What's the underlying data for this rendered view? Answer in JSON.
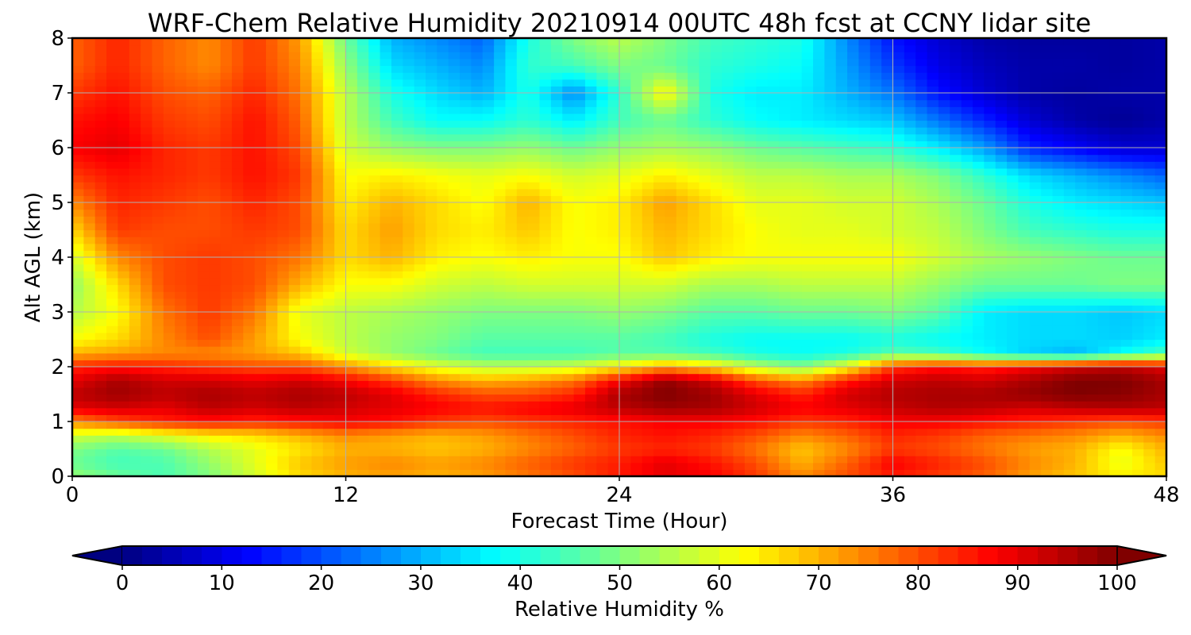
{
  "chart_data": {
    "type": "heatmap",
    "title": "WRF-Chem Relative Humidity 20210914 00UTC 48h fcst at CCNY lidar site",
    "xlabel": "Forecast Time (Hour)",
    "ylabel": "Alt AGL (km)",
    "xlim": [
      0,
      48
    ],
    "ylim": [
      0,
      8
    ],
    "x_ticks": [
      0,
      12,
      24,
      36,
      48
    ],
    "y_ticks": [
      0,
      1,
      2,
      3,
      4,
      5,
      6,
      7,
      8
    ],
    "grid": true,
    "colorbar": {
      "label": "Relative Humidity %",
      "range": [
        0,
        100
      ],
      "ticks": [
        0,
        10,
        20,
        30,
        40,
        50,
        60,
        70,
        80,
        90,
        100
      ],
      "extend": "both",
      "colormap": "jet"
    },
    "x": [
      0,
      2,
      4,
      6,
      8,
      10,
      12,
      14,
      16,
      18,
      20,
      22,
      24,
      26,
      28,
      30,
      32,
      34,
      36,
      38,
      40,
      42,
      44,
      46,
      48
    ],
    "y": [
      0,
      0.25,
      0.5,
      0.75,
      1,
      1.25,
      1.5,
      1.75,
      2,
      2.25,
      2.5,
      3,
      3.5,
      4,
      4.5,
      5,
      5.5,
      6,
      6.5,
      7,
      7.5,
      8
    ],
    "values": [
      [
        52,
        48,
        45,
        50,
        58,
        66,
        70,
        72,
        70,
        72,
        76,
        80,
        85,
        90,
        88,
        82,
        74,
        80,
        85,
        82,
        78,
        72,
        68,
        64,
        66
      ],
      [
        48,
        44,
        45,
        52,
        60,
        68,
        72,
        74,
        72,
        74,
        78,
        82,
        85,
        90,
        86,
        80,
        70,
        78,
        88,
        84,
        80,
        74,
        70,
        60,
        68
      ],
      [
        50,
        46,
        48,
        55,
        60,
        65,
        70,
        70,
        68,
        70,
        74,
        78,
        82,
        84,
        82,
        76,
        68,
        74,
        82,
        80,
        76,
        72,
        70,
        62,
        70
      ],
      [
        58,
        56,
        60,
        64,
        66,
        70,
        74,
        72,
        70,
        72,
        76,
        80,
        84,
        86,
        84,
        80,
        74,
        78,
        84,
        82,
        78,
        76,
        74,
        70,
        74
      ],
      [
        74,
        80,
        84,
        86,
        84,
        86,
        88,
        86,
        82,
        80,
        82,
        84,
        86,
        88,
        88,
        86,
        82,
        84,
        88,
        88,
        86,
        84,
        82,
        80,
        82
      ],
      [
        90,
        92,
        90,
        94,
        92,
        94,
        92,
        90,
        88,
        86,
        88,
        90,
        94,
        97,
        96,
        92,
        88,
        90,
        93,
        95,
        94,
        92,
        94,
        95,
        94
      ],
      [
        94,
        97,
        94,
        96,
        94,
        96,
        94,
        90,
        84,
        80,
        80,
        84,
        96,
        100,
        97,
        90,
        84,
        92,
        95,
        96,
        96,
        98,
        100,
        99,
        96
      ],
      [
        90,
        96,
        92,
        92,
        90,
        92,
        88,
        82,
        74,
        70,
        72,
        76,
        88,
        98,
        92,
        80,
        74,
        85,
        92,
        94,
        92,
        96,
        100,
        100,
        96
      ],
      [
        84,
        86,
        84,
        82,
        80,
        80,
        74,
        66,
        60,
        56,
        56,
        58,
        64,
        72,
        66,
        56,
        50,
        62,
        82,
        86,
        84,
        88,
        92,
        94,
        90
      ],
      [
        70,
        72,
        74,
        74,
        72,
        68,
        58,
        52,
        48,
        44,
        44,
        44,
        46,
        46,
        44,
        40,
        38,
        40,
        46,
        44,
        38,
        33,
        30,
        38,
        45
      ],
      [
        62,
        66,
        74,
        80,
        72,
        62,
        56,
        52,
        50,
        46,
        46,
        46,
        46,
        44,
        40,
        38,
        38,
        38,
        40,
        38,
        36,
        34,
        34,
        33,
        36
      ],
      [
        55,
        62,
        76,
        82,
        76,
        60,
        56,
        54,
        52,
        50,
        50,
        50,
        52,
        50,
        46,
        46,
        48,
        48,
        50,
        46,
        36,
        34,
        34,
        32,
        34
      ],
      [
        52,
        66,
        80,
        82,
        80,
        70,
        62,
        62,
        58,
        56,
        58,
        58,
        58,
        58,
        54,
        54,
        56,
        56,
        56,
        52,
        48,
        48,
        48,
        50,
        50
      ],
      [
        58,
        74,
        80,
        82,
        80,
        76,
        66,
        70,
        64,
        62,
        64,
        62,
        62,
        68,
        64,
        62,
        62,
        62,
        62,
        58,
        54,
        52,
        50,
        48,
        48
      ],
      [
        66,
        82,
        80,
        80,
        82,
        80,
        66,
        72,
        66,
        64,
        68,
        62,
        64,
        70,
        66,
        62,
        60,
        60,
        58,
        56,
        50,
        44,
        42,
        40,
        40
      ],
      [
        74,
        84,
        82,
        80,
        84,
        80,
        64,
        70,
        66,
        62,
        70,
        62,
        64,
        72,
        66,
        60,
        60,
        58,
        58,
        54,
        48,
        40,
        36,
        34,
        32
      ],
      [
        82,
        86,
        84,
        82,
        86,
        82,
        62,
        64,
        62,
        60,
        62,
        58,
        60,
        64,
        60,
        56,
        56,
        54,
        54,
        50,
        42,
        34,
        30,
        26,
        22
      ],
      [
        88,
        90,
        84,
        82,
        86,
        80,
        58,
        52,
        50,
        50,
        52,
        48,
        52,
        54,
        52,
        48,
        46,
        44,
        42,
        36,
        28,
        16,
        12,
        8,
        8
      ],
      [
        86,
        88,
        82,
        80,
        86,
        78,
        56,
        44,
        38,
        38,
        42,
        36,
        44,
        48,
        42,
        38,
        36,
        34,
        32,
        24,
        16,
        8,
        4,
        2,
        4
      ],
      [
        82,
        86,
        80,
        78,
        84,
        76,
        56,
        40,
        34,
        30,
        40,
        26,
        42,
        64,
        40,
        36,
        36,
        30,
        24,
        14,
        8,
        4,
        3,
        4,
        4
      ],
      [
        78,
        84,
        78,
        74,
        82,
        74,
        52,
        34,
        30,
        26,
        42,
        44,
        50,
        48,
        42,
        40,
        38,
        28,
        18,
        10,
        6,
        4,
        4,
        3,
        4
      ],
      [
        78,
        84,
        78,
        74,
        82,
        72,
        48,
        30,
        26,
        22,
        40,
        50,
        56,
        50,
        44,
        42,
        40,
        26,
        14,
        8,
        4,
        3,
        3,
        3,
        4
      ]
    ]
  }
}
